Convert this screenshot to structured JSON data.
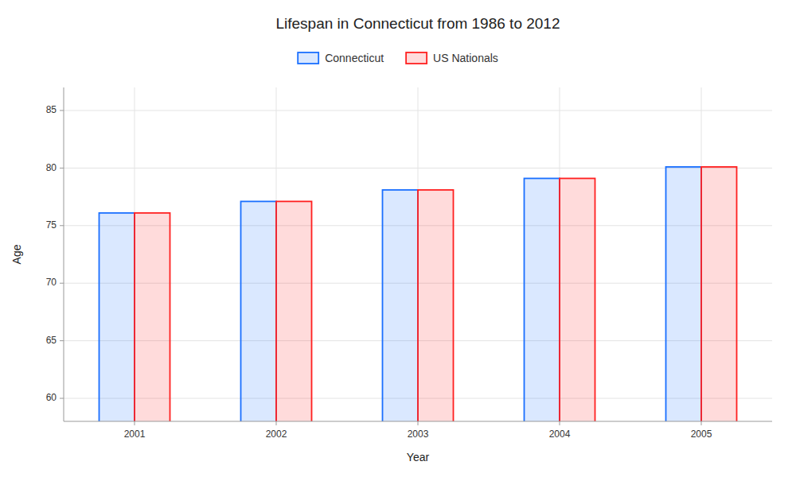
{
  "chart_data": {
    "type": "bar",
    "title": "Lifespan in Connecticut from 1986 to 2012",
    "xlabel": "Year",
    "ylabel": "Age",
    "categories": [
      "2001",
      "2002",
      "2003",
      "2004",
      "2005"
    ],
    "series": [
      {
        "name": "Connecticut",
        "color": "#1a6fff",
        "values": [
          76.1,
          77.1,
          78.1,
          79.1,
          80.1
        ]
      },
      {
        "name": "US Nationals",
        "color": "#ff2020",
        "values": [
          76.1,
          77.1,
          78.1,
          79.1,
          80.1
        ]
      }
    ],
    "ylim": [
      58,
      87
    ],
    "yticks": [
      60,
      65,
      70,
      75,
      80,
      85
    ],
    "grid": true,
    "legend": "top"
  }
}
